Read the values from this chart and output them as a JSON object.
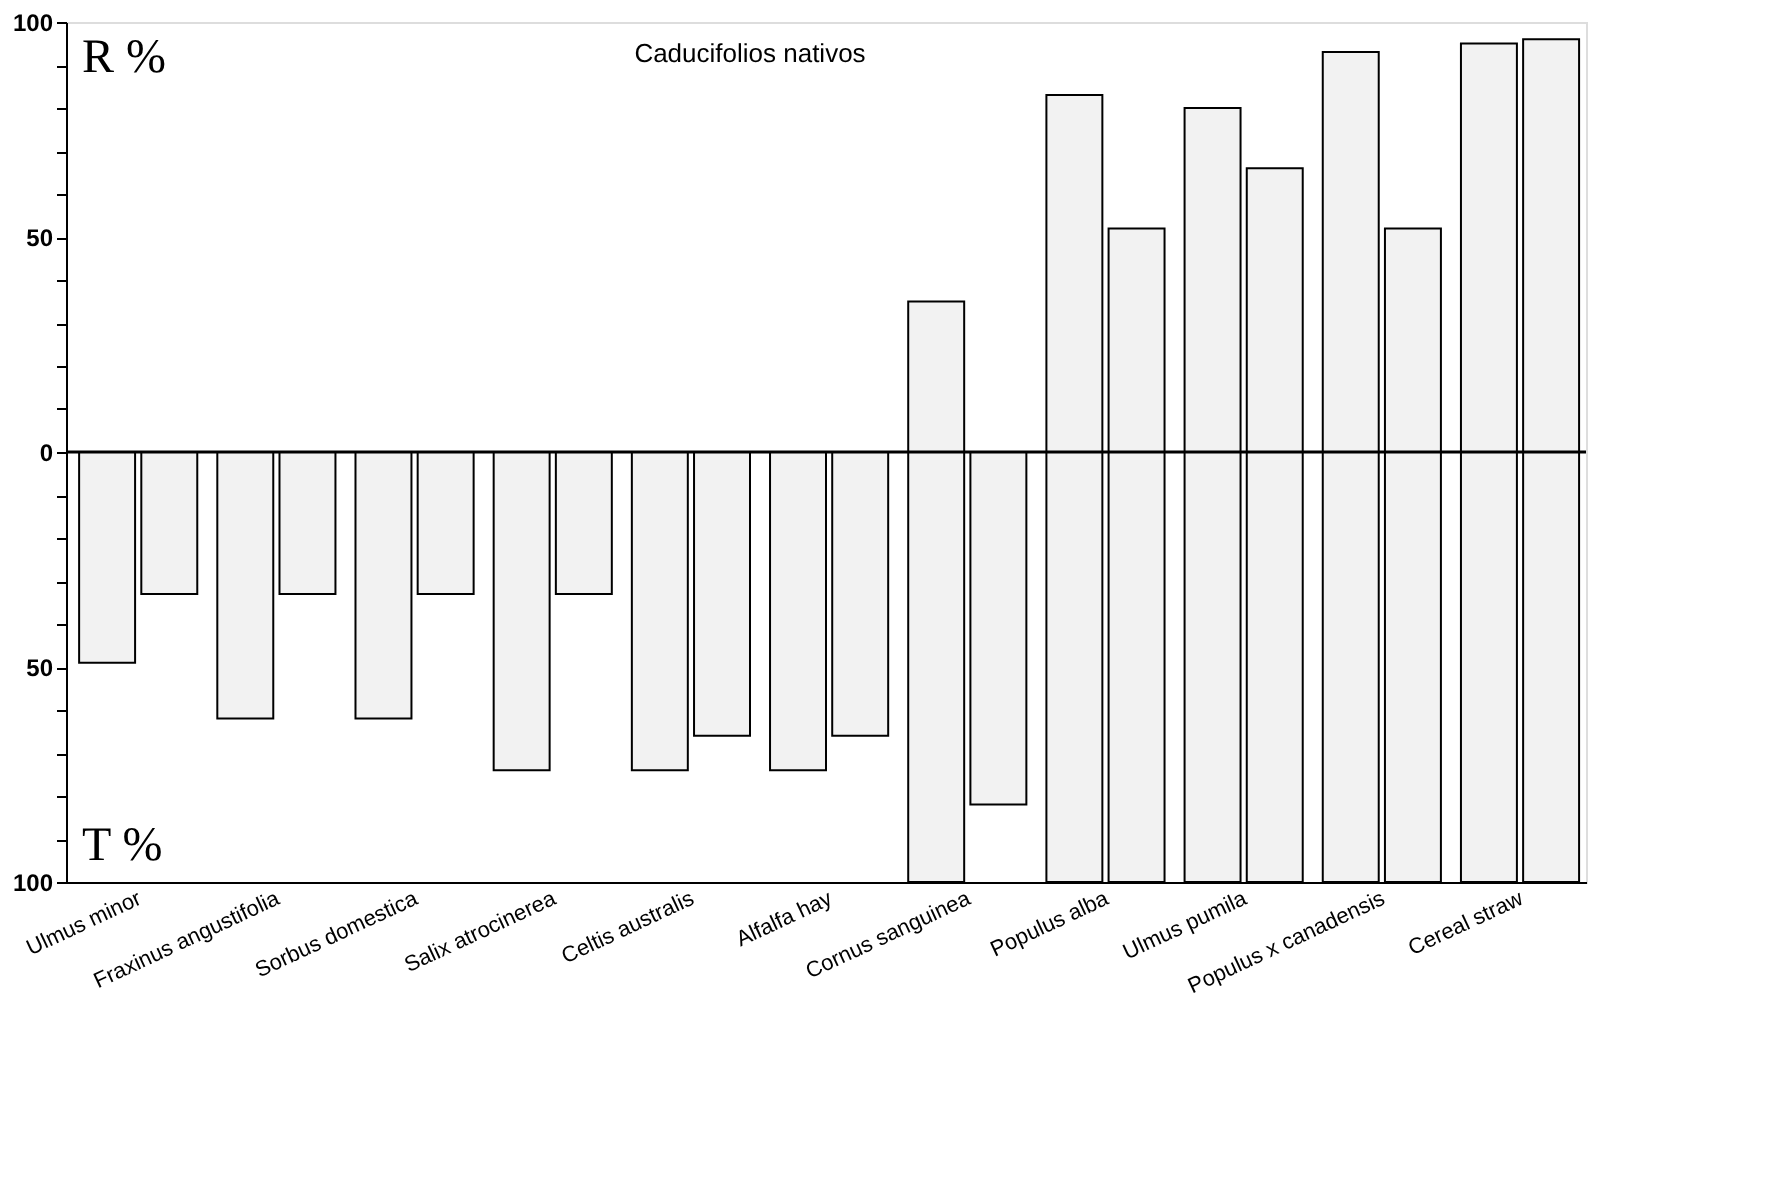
{
  "chart_data": {
    "type": "bar",
    "title": "Caducifolios nativos",
    "annotations": [
      "R %",
      "T %"
    ],
    "categories": [
      "Ulmus minor",
      "Fraxinus angustifolia",
      "Sorbus domestica",
      "Salix atrocinerea",
      "Celtis australis",
      "Alfalfa hay",
      "Cornus sanguinea",
      "Populus alba",
      "Ulmus pumila",
      "Populus x canadensis",
      "Cereal straw"
    ],
    "series": [
      {
        "color": "#f2f2f2",
        "base": [
          -49,
          -62,
          -62,
          -74,
          -74,
          -74,
          -100,
          -100,
          -100,
          -100,
          -100
        ],
        "values": [
          49,
          62,
          62,
          74,
          74,
          74,
          135,
          183,
          180,
          193,
          195
        ]
      },
      {
        "color": "#f2f2f2",
        "base": [
          -33,
          -33,
          -33,
          -33,
          -66,
          -66,
          -82,
          -100,
          -100,
          -100,
          -100
        ],
        "values": [
          33,
          33,
          33,
          33,
          66,
          66,
          82,
          152,
          166,
          152,
          196
        ]
      }
    ],
    "ylim": [
      -100,
      100
    ],
    "yticks": [
      {
        "value": -100,
        "label": "100"
      },
      {
        "value": -90,
        "label": null
      },
      {
        "value": -80,
        "label": null
      },
      {
        "value": -70,
        "label": null
      },
      {
        "value": -60,
        "label": null
      },
      {
        "value": -50,
        "label": "50"
      },
      {
        "value": -40,
        "label": null
      },
      {
        "value": -30,
        "label": null
      },
      {
        "value": -20,
        "label": null
      },
      {
        "value": -10,
        "label": null
      },
      0,
      {
        "value": 10,
        "label": null
      },
      {
        "value": 20,
        "label": null
      },
      {
        "value": 30,
        "label": null
      },
      {
        "value": 40,
        "label": null
      },
      50,
      {
        "value": 60,
        "label": null
      },
      {
        "value": 70,
        "label": null
      },
      {
        "value": 80,
        "label": null
      },
      {
        "value": 90,
        "label": null
      },
      100
    ],
    "ref_lines": [
      {
        "axis": "y",
        "value": 0,
        "color": "#000000"
      }
    ],
    "grid": false
  }
}
